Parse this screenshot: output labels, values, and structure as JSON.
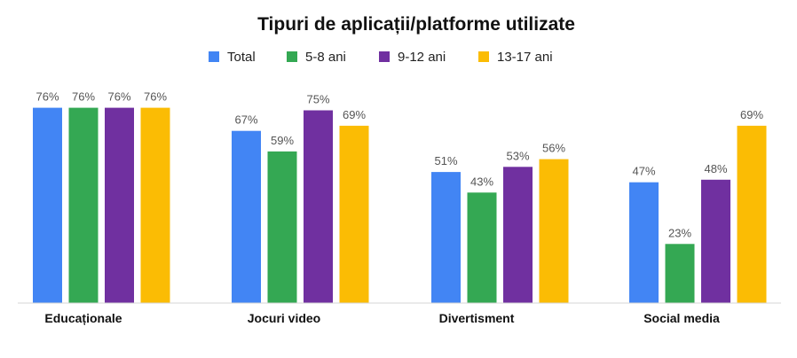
{
  "chart_data": {
    "type": "bar",
    "title": "Tipuri de aplicații/platforme utilizate",
    "categories": [
      "Educaționale",
      "Jocuri video",
      "Divertisment",
      "Social media"
    ],
    "series": [
      {
        "name": "Total",
        "color": "#4285F4",
        "values": [
          76,
          67,
          51,
          47
        ]
      },
      {
        "name": "5-8 ani",
        "color": "#34A853",
        "values": [
          76,
          59,
          43,
          23
        ]
      },
      {
        "name": "9-12 ani",
        "color": "#7030A0",
        "values": [
          76,
          75,
          53,
          48
        ]
      },
      {
        "name": "13-17 ani",
        "color": "#FBBC04",
        "values": [
          76,
          69,
          56,
          69
        ]
      }
    ],
    "value_suffix": "%",
    "xlabel": "",
    "ylabel": "",
    "ylim": [
      0,
      100
    ],
    "grid": false,
    "legend_position": "top-center"
  }
}
